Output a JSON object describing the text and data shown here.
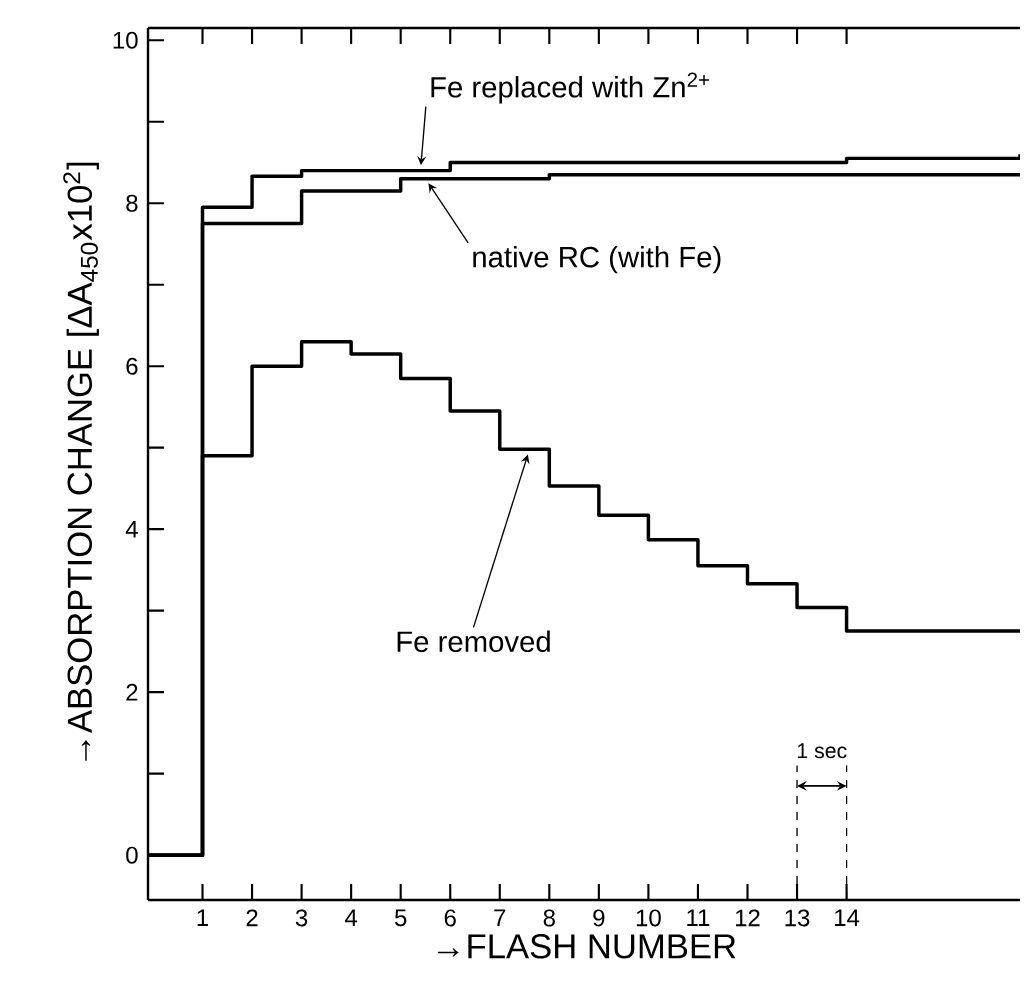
{
  "chart_data": {
    "type": "step",
    "xlabel": "→FLASH NUMBER",
    "ylabel": "→ABSORPTION CHANGE [ΔA$_{450}$x10$^{2}$]",
    "xlim": [
      -0.1,
      17.5
    ],
    "ylim": [
      -0.55,
      10.15
    ],
    "xticks": [
      1,
      2,
      3,
      4,
      5,
      6,
      7,
      8,
      9,
      10,
      11,
      12,
      13,
      14
    ],
    "yticks": [
      0,
      {
        "value": 1,
        "label": null
      },
      2,
      {
        "value": 3,
        "label": null
      },
      4,
      {
        "value": 5,
        "label": null
      },
      6,
      {
        "value": 7,
        "label": null
      },
      8,
      {
        "value": 9,
        "label": null
      },
      10
    ],
    "grid": false,
    "marker": "none",
    "line_style": "solid",
    "series": [
      {
        "color": "#000000",
        "x": [
          -0.1,
          1,
          3,
          5,
          8,
          17.5
        ],
        "values": [
          0,
          7.75,
          8.15,
          8.3,
          8.35,
          8.35
        ]
      },
      {
        "color": "#000000",
        "x": [
          -0.1,
          1,
          2,
          3,
          6,
          14,
          17.5
        ],
        "values": [
          0,
          7.95,
          8.33,
          8.4,
          8.5,
          8.55,
          8.6
        ]
      },
      {
        "color": "#000000",
        "x": [
          -0.1,
          1,
          2,
          3,
          4,
          5,
          6,
          7,
          8,
          9,
          10,
          11,
          12,
          13,
          14,
          17.5
        ],
        "values": [
          0,
          4.9,
          6.0,
          6.3,
          6.15,
          5.85,
          5.45,
          4.98,
          4.53,
          4.17,
          3.87,
          3.55,
          3.33,
          3.04,
          2.75,
          2.75
        ]
      }
    ],
    "annotations": [
      {
        "text": "Fe replaced with Zn$^{2+}$",
        "x": 5.4,
        "y": 8.4
      },
      {
        "text": "native RC (with Fe)",
        "x": 5.5,
        "y": 8.3
      },
      {
        "text": "Fe removed",
        "x": 7.6,
        "y": 4.98
      },
      "1 sec"
    ]
  }
}
